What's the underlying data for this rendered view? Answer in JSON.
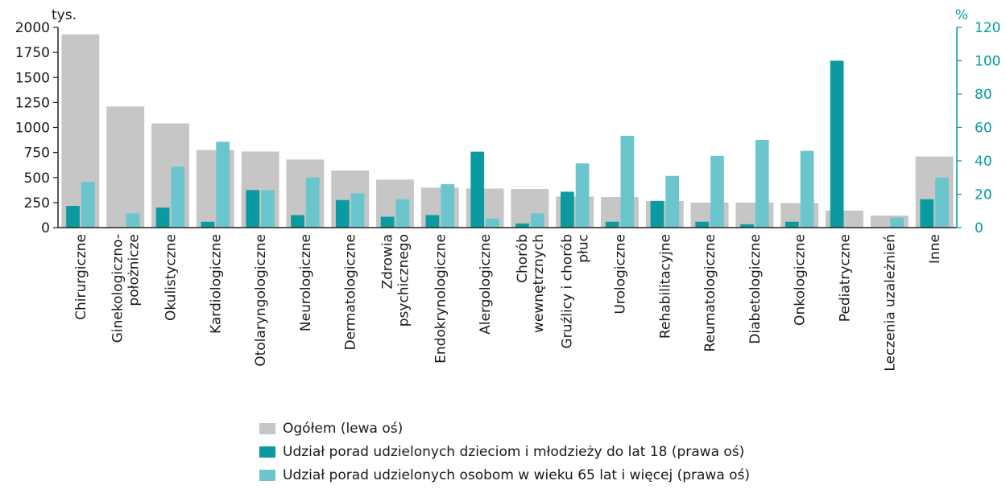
{
  "chart_data": {
    "type": "bar",
    "categories": [
      "Chirurgiczne",
      "Ginekologiczno-\npołożnicze",
      "Okulistyczne",
      "Kardiologiczne",
      "Otolaryngologiczne",
      "Neurologiczne",
      "Dermatologiczne",
      "Zdrowia\npsychicznego",
      "Endokrynologiczne",
      "Alergologiczne",
      "Chorób\nwewnętrznych",
      "Gruźlicy i chorób\npłuc",
      "Urologiczne",
      "Rehabilitacyjne",
      "Reumatologiczne",
      "Diabetologiczne",
      "Onkologiczne",
      "Pediatryczne",
      "Leczenia uzależnień",
      "Inne"
    ],
    "series": [
      {
        "name": "Ogółem (lewa oś)",
        "axis": "left",
        "color": "#c6c6c6",
        "values": [
          1930,
          1210,
          1040,
          775,
          760,
          680,
          570,
          480,
          400,
          390,
          385,
          310,
          305,
          265,
          250,
          250,
          245,
          170,
          120,
          710
        ]
      },
      {
        "name": "Udział porad udzielonych dzieciom i młodzieży do lat 18 (prawa oś)",
        "axis": "right",
        "color": "#0a9aa0",
        "values": [
          13,
          0,
          12,
          3.5,
          22.5,
          7.5,
          16.5,
          6.5,
          7.5,
          45.5,
          2.5,
          21.5,
          3.5,
          16,
          3.5,
          2,
          3.5,
          100,
          0,
          17
        ]
      },
      {
        "name": "Udział porad udzielonych osobom w wieku 65 lat i więcej (prawa oś)",
        "axis": "right",
        "color": "#6ac6cc",
        "values": [
          27.5,
          8.5,
          36.5,
          51.5,
          22.5,
          30,
          20.5,
          17,
          26,
          5.5,
          8.5,
          38.5,
          55,
          31,
          43,
          52.5,
          46,
          0,
          6,
          30
        ]
      }
    ],
    "ylabel_left": "tys.",
    "ylabel_right": "%",
    "ylim_left": [
      0,
      2000
    ],
    "ylim_right": [
      0,
      120
    ],
    "yticks_left": [
      "0",
      "250",
      "500",
      "750",
      "1000",
      "1250",
      "1500",
      "1750",
      "2000"
    ],
    "yticks_right": [
      "0",
      "20",
      "40",
      "60",
      "80",
      "100",
      "120"
    ],
    "grid": false,
    "legend_position": "bottom"
  },
  "colors": {
    "axis_left": "#222222",
    "axis_right": "#0a9aa0",
    "text": "#1a1a1a"
  }
}
